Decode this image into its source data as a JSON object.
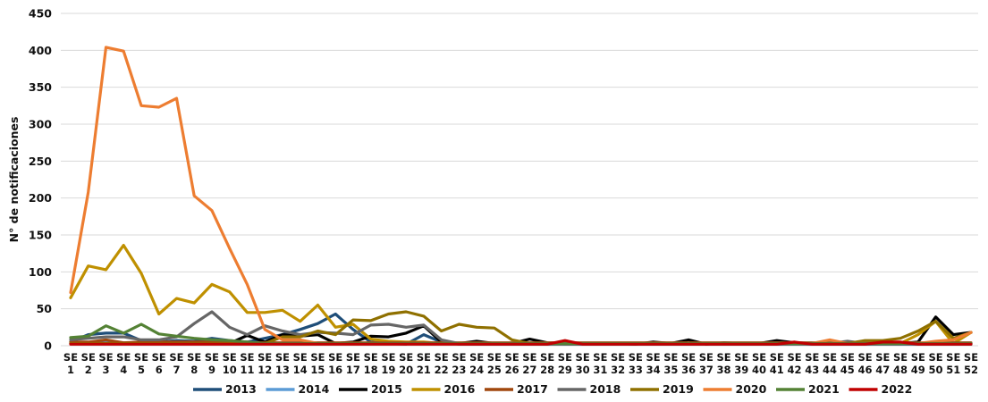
{
  "chart_data": {
    "type": "line",
    "title": "",
    "xlabel": "",
    "ylabel": "N° de notificaciones",
    "ylim": [
      0,
      450
    ],
    "yticks": [
      0,
      50,
      100,
      150,
      200,
      250,
      300,
      350,
      400,
      450
    ],
    "grid": true,
    "legend_position": "bottom",
    "categories": [
      "SE 1",
      "SE 2",
      "SE 3",
      "SE 4",
      "SE 5",
      "SE 6",
      "SE 7",
      "SE 8",
      "SE 9",
      "SE 10",
      "SE 11",
      "SE 12",
      "SE 13",
      "SE 14",
      "SE 15",
      "SE 16",
      "SE 17",
      "SE 18",
      "SE 19",
      "SE 20",
      "SE 21",
      "SE 22",
      "SE 23",
      "SE 24",
      "SE 25",
      "SE 26",
      "SE 27",
      "SE 28",
      "SE 29",
      "SE 30",
      "SE 31",
      "SE 32",
      "SE 33",
      "SE 34",
      "SE 35",
      "SE 36",
      "SE 37",
      "SE 38",
      "SE 39",
      "SE 40",
      "SE 41",
      "SE 42",
      "SE 43",
      "SE 44",
      "SE 45",
      "SE 46",
      "SE 47",
      "SE 48",
      "SE 49",
      "SE 50",
      "SE 51",
      "SE 52"
    ],
    "series": [
      {
        "name": "2013",
        "color": "#1f4e79",
        "values": [
          5,
          15,
          17,
          17,
          7,
          5,
          7,
          6,
          10,
          7,
          5,
          10,
          15,
          22,
          30,
          43,
          22,
          5,
          3,
          2,
          15,
          5,
          2,
          2,
          2,
          2,
          2,
          2,
          2,
          2,
          2,
          2,
          2,
          2,
          2,
          2,
          2,
          2,
          2,
          2,
          2,
          2,
          2,
          2,
          2,
          2,
          2,
          2,
          2,
          2,
          2,
          2
        ]
      },
      {
        "name": "2014",
        "color": "#5b9bd5",
        "values": [
          3,
          4,
          4,
          4,
          3,
          3,
          3,
          3,
          3,
          3,
          3,
          3,
          3,
          3,
          3,
          3,
          3,
          3,
          3,
          3,
          3,
          3,
          3,
          3,
          3,
          3,
          3,
          3,
          3,
          3,
          3,
          3,
          3,
          3,
          3,
          3,
          3,
          3,
          3,
          3,
          3,
          3,
          3,
          3,
          3,
          3,
          3,
          3,
          3,
          3,
          3,
          3
        ]
      },
      {
        "name": "2015",
        "color": "#000000",
        "values": [
          3,
          3,
          3,
          3,
          3,
          3,
          3,
          3,
          3,
          3,
          14,
          5,
          15,
          13,
          15,
          3,
          5,
          13,
          12,
          17,
          27,
          5,
          3,
          6,
          3,
          3,
          9,
          4,
          3,
          3,
          3,
          3,
          2,
          5,
          3,
          8,
          2,
          4,
          3,
          3,
          7,
          4,
          3,
          3,
          3,
          3,
          3,
          3,
          5,
          39,
          15,
          18
        ]
      },
      {
        "name": "2016",
        "color": "#bf9000",
        "values": [
          65,
          108,
          103,
          136,
          98,
          43,
          64,
          58,
          83,
          73,
          45,
          45,
          48,
          33,
          55,
          25,
          29,
          9,
          6,
          5,
          5,
          3,
          3,
          3,
          3,
          3,
          3,
          3,
          3,
          3,
          3,
          3,
          3,
          3,
          3,
          3,
          3,
          3,
          3,
          3,
          3,
          3,
          3,
          3,
          3,
          3,
          3,
          3,
          15,
          33,
          3,
          18
        ]
      },
      {
        "name": "2017",
        "color": "#a0470d",
        "values": [
          5,
          5,
          8,
          4,
          5,
          5,
          5,
          5,
          5,
          5,
          4,
          4,
          4,
          4,
          4,
          4,
          4,
          4,
          4,
          4,
          4,
          4,
          4,
          4,
          4,
          4,
          4,
          4,
          4,
          4,
          4,
          4,
          4,
          4,
          4,
          4,
          4,
          4,
          4,
          4,
          4,
          4,
          4,
          4,
          4,
          4,
          4,
          4,
          4,
          4,
          4,
          4
        ]
      },
      {
        "name": "2018",
        "color": "#666666",
        "values": [
          8,
          10,
          12,
          12,
          8,
          8,
          12,
          30,
          46,
          25,
          15,
          27,
          20,
          15,
          18,
          17,
          15,
          28,
          29,
          25,
          28,
          8,
          3,
          3,
          3,
          3,
          3,
          3,
          3,
          3,
          3,
          3,
          3,
          3,
          3,
          3,
          3,
          3,
          3,
          3,
          3,
          3,
          3,
          3,
          6,
          3,
          3,
          3,
          3,
          3,
          3,
          3
        ]
      },
      {
        "name": "2019",
        "color": "#8f7000",
        "values": [
          3,
          3,
          3,
          3,
          3,
          3,
          3,
          3,
          3,
          3,
          3,
          3,
          12,
          12,
          20,
          15,
          35,
          34,
          43,
          46,
          40,
          20,
          29,
          25,
          24,
          8,
          3,
          3,
          3,
          3,
          3,
          3,
          3,
          3,
          3,
          3,
          3,
          3,
          3,
          3,
          3,
          3,
          3,
          3,
          3,
          7,
          7,
          10,
          20,
          33,
          10,
          18
        ]
      },
      {
        "name": "2020",
        "color": "#ed7d31",
        "values": [
          72,
          208,
          404,
          399,
          325,
          323,
          335,
          203,
          183,
          132,
          83,
          22,
          8,
          8,
          3,
          3,
          3,
          3,
          3,
          3,
          3,
          3,
          3,
          3,
          3,
          3,
          3,
          3,
          3,
          3,
          3,
          3,
          3,
          3,
          3,
          3,
          3,
          3,
          3,
          3,
          3,
          3,
          3,
          8,
          3,
          3,
          3,
          3,
          3,
          6,
          8,
          18
        ]
      },
      {
        "name": "2021",
        "color": "#548235",
        "values": [
          11,
          13,
          27,
          17,
          29,
          16,
          13,
          10,
          8,
          7,
          5,
          3,
          3,
          3,
          3,
          3,
          3,
          3,
          3,
          3,
          3,
          3,
          3,
          3,
          3,
          3,
          3,
          3,
          3,
          3,
          3,
          3,
          3,
          3,
          3,
          3,
          3,
          3,
          3,
          3,
          3,
          3,
          3,
          3,
          3,
          3,
          3,
          3,
          3,
          3,
          3,
          3
        ]
      },
      {
        "name": "2022",
        "color": "#c00000",
        "values": [
          2,
          2,
          2,
          2,
          2,
          2,
          2,
          2,
          2,
          2,
          2,
          2,
          2,
          2,
          2,
          2,
          2,
          2,
          2,
          2,
          2,
          2,
          2,
          2,
          2,
          2,
          2,
          2,
          7,
          2,
          2,
          2,
          2,
          2,
          2,
          2,
          2,
          2,
          2,
          2,
          2,
          5,
          2,
          2,
          2,
          2,
          5,
          5,
          2,
          2,
          2,
          2
        ]
      }
    ]
  }
}
